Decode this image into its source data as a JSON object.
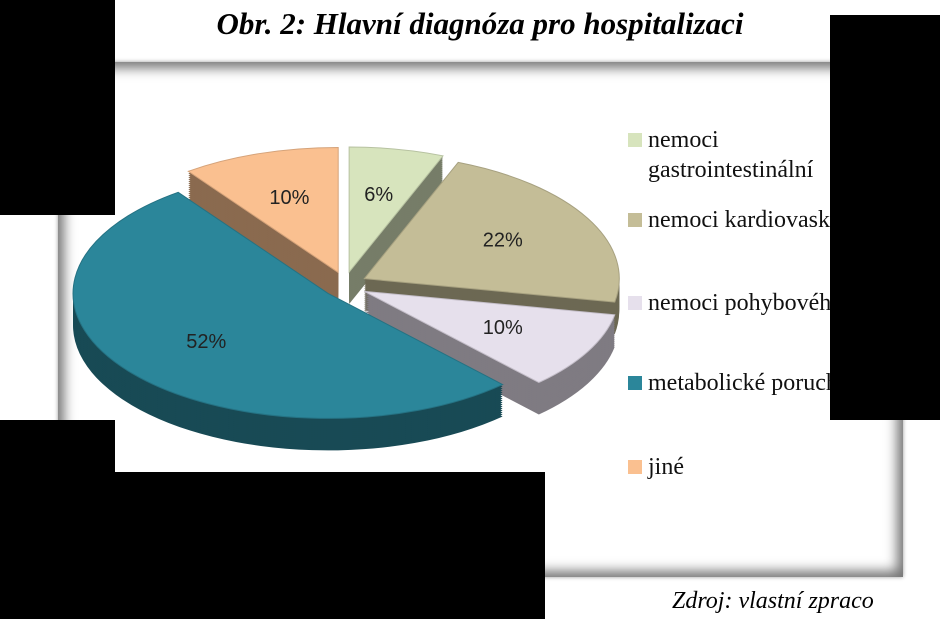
{
  "chart_data": {
    "type": "pie",
    "title": "Obr. 2: Hlavní diagnóza pro hospitalizaci",
    "source": "Zdroj: vlastní zpraco",
    "categories": [
      "nemoci gastrointestinální",
      "nemoci kardiovaskulární",
      "nemoci pohybového ap.",
      "metabolické poruchy",
      "jiné"
    ],
    "values": [
      6,
      22,
      10,
      52,
      10
    ],
    "value_labels": [
      "6%",
      "22%",
      "10%",
      "52%",
      "10%"
    ],
    "colors": [
      "#d7e4bd",
      "#c4bd97",
      "#e6e0ec",
      "#2b869a",
      "#fac090"
    ],
    "legend": "right"
  }
}
